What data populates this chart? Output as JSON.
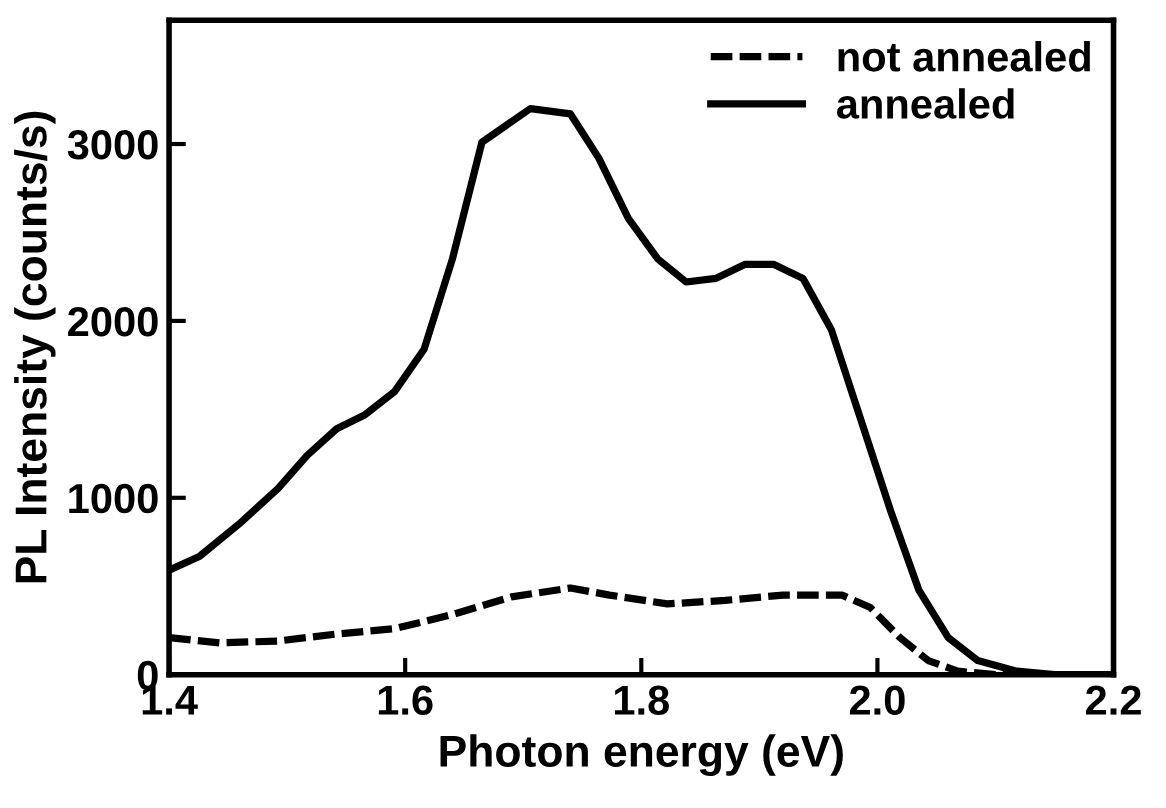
{
  "chart_data": {
    "type": "line",
    "xlabel": "Photon energy (eV)",
    "ylabel": "PL Intensity (counts/s)",
    "xlim": [
      1.4,
      2.2
    ],
    "ylim": [
      0,
      3700
    ],
    "xticks": [
      1.4,
      1.6,
      1.8,
      {
        "value": 2.0,
        "label": "2.0"
      },
      2.2
    ],
    "yticks": [
      0,
      1000,
      2000,
      3000
    ],
    "grid": false,
    "legend": "top right",
    "marker": "none",
    "series": [
      {
        "name": "not annealed",
        "color": "#000000",
        "line_style": "dashed",
        "x": [
          1.4,
          1.443,
          1.492,
          1.542,
          1.591,
          1.64,
          1.69,
          1.74,
          1.773,
          1.822,
          1.871,
          1.92,
          1.97,
          1.994,
          2.019,
          2.043,
          2.068,
          2.1,
          2.2
        ],
        "values": [
          210,
          180,
          190,
          230,
          260,
          340,
          440,
          490,
          450,
          400,
          420,
          450,
          450,
          380,
          210,
          80,
          20,
          0,
          0
        ]
      },
      {
        "name": "annealed",
        "color": "#000000",
        "line_style": "solid",
        "x": [
          1.4,
          1.426,
          1.459,
          1.492,
          1.517,
          1.542,
          1.566,
          1.591,
          1.616,
          1.64,
          1.665,
          1.706,
          1.74,
          1.764,
          1.789,
          1.814,
          1.838,
          1.863,
          1.888,
          1.912,
          1.937,
          1.961,
          1.986,
          2.011,
          2.035,
          2.06,
          2.085,
          2.118,
          2.15,
          2.2
        ],
        "values": [
          590,
          670,
          850,
          1050,
          1240,
          1390,
          1470,
          1600,
          1840,
          2350,
          3010,
          3200,
          3170,
          2920,
          2580,
          2350,
          2220,
          2240,
          2320,
          2320,
          2240,
          1950,
          1440,
          930,
          480,
          210,
          80,
          20,
          0,
          0
        ]
      }
    ]
  }
}
